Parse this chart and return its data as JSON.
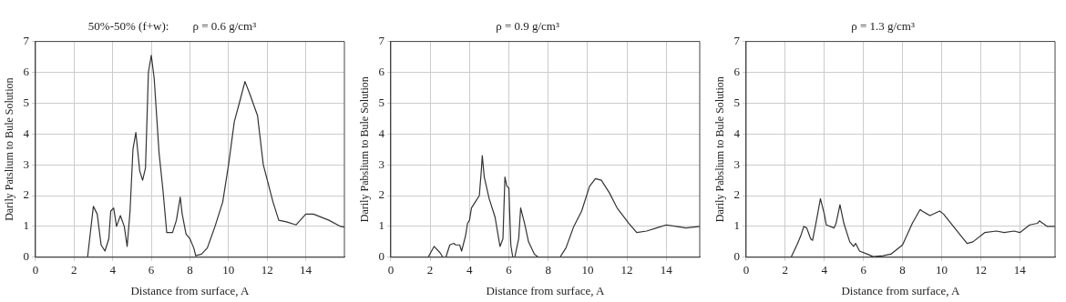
{
  "chart_data": [
    {
      "type": "line",
      "title": "50%-50% (f+w):        ρ = 0.6 g/cm³",
      "xlabel": "Distance from surface, A",
      "ylabel": "Darily Patslium to Bule Solution",
      "xlim": [
        0,
        16
      ],
      "xticks": [
        0,
        2,
        4,
        6,
        8,
        10,
        12,
        14
      ],
      "ylim": [
        0,
        7
      ],
      "yticks": [
        0,
        1,
        2,
        3,
        4,
        5,
        6,
        7
      ],
      "grid": true,
      "legend": false,
      "marker": "none",
      "line_style": "solid",
      "series": [
        {
          "color": "#333333",
          "x": [
            0,
            2.7,
            3.0,
            3.2,
            3.4,
            3.6,
            3.8,
            3.9,
            4.05,
            4.2,
            4.4,
            4.6,
            4.75,
            4.9,
            5.05,
            5.2,
            5.4,
            5.55,
            5.7,
            5.85,
            6.0,
            6.15,
            6.4,
            6.6,
            6.8,
            7.1,
            7.3,
            7.5,
            7.6,
            7.8,
            8.0,
            8.2,
            8.3,
            8.6,
            8.9,
            9.3,
            9.7,
            10.0,
            10.3,
            10.6,
            10.85,
            11.1,
            11.5,
            11.8,
            12.3,
            12.6,
            13.0,
            13.5,
            14.0,
            14.4,
            15.2,
            15.8,
            16
          ],
          "values": [
            0,
            0,
            1.65,
            1.4,
            0.4,
            0.2,
            0.6,
            1.5,
            1.6,
            1.0,
            1.35,
            1.0,
            0.35,
            1.5,
            3.5,
            4.05,
            2.8,
            2.5,
            2.9,
            6.0,
            6.55,
            5.8,
            3.4,
            2.2,
            0.8,
            0.8,
            1.2,
            1.95,
            1.4,
            0.75,
            0.6,
            0.3,
            0.05,
            0.1,
            0.3,
            1.0,
            1.8,
            3.0,
            4.4,
            5.1,
            5.7,
            5.3,
            4.6,
            3.0,
            1.8,
            1.2,
            1.15,
            1.05,
            1.4,
            1.4,
            1.2,
            1.0,
            0.98
          ]
        }
      ]
    },
    {
      "type": "line",
      "title": "ρ = 0.9 g/cm³",
      "xlabel": "Distance from surface, A",
      "ylabel": "Darily Pabslium to Bule Solution",
      "xlim": [
        0,
        15.7
      ],
      "xticks": [
        0,
        2,
        4,
        6,
        8,
        10,
        12,
        14
      ],
      "ylim": [
        0,
        7
      ],
      "yticks": [
        0,
        1,
        2,
        3,
        4,
        5,
        6,
        7
      ],
      "grid": true,
      "legend": false,
      "marker": "none",
      "line_style": "solid",
      "series": [
        {
          "color": "#333333",
          "x": [
            0,
            1.9,
            2.2,
            2.5,
            2.65,
            2.8,
            3.0,
            3.2,
            3.3,
            3.5,
            3.6,
            3.8,
            3.9,
            4.0,
            4.1,
            4.3,
            4.5,
            4.6,
            4.65,
            4.75,
            5.0,
            5.3,
            5.55,
            5.7,
            5.8,
            5.9,
            6.0,
            6.1,
            6.2,
            6.3,
            6.5,
            6.6,
            6.8,
            7.0,
            7.3,
            7.5,
            8.6,
            8.9,
            9.3,
            9.7,
            10.1,
            10.4,
            10.7,
            11.1,
            11.5,
            12.1,
            12.5,
            13.0,
            13.5,
            14.0,
            14.5,
            15.0,
            15.7
          ],
          "values": [
            0,
            0,
            0.35,
            0.15,
            0,
            0,
            0.4,
            0.45,
            0.4,
            0.4,
            0.2,
            0.7,
            1.1,
            1.2,
            1.6,
            1.8,
            2.0,
            2.8,
            3.3,
            2.6,
            1.9,
            1.3,
            0.35,
            0.6,
            2.6,
            2.3,
            2.25,
            0.4,
            0,
            0,
            0.6,
            1.6,
            1.1,
            0.5,
            0.1,
            0,
            0,
            0.3,
            1.0,
            1.5,
            2.3,
            2.55,
            2.5,
            2.1,
            1.6,
            1.1,
            0.8,
            0.85,
            0.95,
            1.05,
            1.0,
            0.95,
            1.0
          ]
        }
      ]
    },
    {
      "type": "line",
      "title": "ρ = 1.3 g/cm³",
      "xlabel": "Distance from surface, A",
      "ylabel": "Darily Pabslium to Bule Solution",
      "xlim": [
        0,
        15.8
      ],
      "xticks": [
        0,
        2,
        4,
        6,
        8,
        10,
        12,
        14
      ],
      "ylim": [
        0,
        7
      ],
      "yticks": [
        0,
        1,
        2,
        3,
        4,
        5,
        6,
        7
      ],
      "grid": true,
      "legend": false,
      "marker": "none",
      "line_style": "solid",
      "series": [
        {
          "color": "#333333",
          "x": [
            0,
            2.3,
            2.6,
            2.8,
            2.95,
            3.1,
            3.3,
            3.4,
            3.6,
            3.8,
            4.0,
            4.1,
            4.5,
            4.6,
            4.8,
            5.0,
            5.3,
            5.5,
            5.6,
            5.8,
            6.2,
            6.5,
            7.0,
            7.4,
            8.0,
            8.5,
            8.9,
            9.0,
            9.4,
            9.9,
            10.1,
            10.6,
            11.3,
            11.6,
            12.2,
            12.8,
            13.2,
            13.7,
            14.0,
            14.5,
            14.9,
            15.0,
            15.4,
            15.8
          ],
          "values": [
            0,
            0,
            0.4,
            0.7,
            1.0,
            0.95,
            0.6,
            0.55,
            1.2,
            1.9,
            1.4,
            1.05,
            0.95,
            1.1,
            1.7,
            1.1,
            0.5,
            0.35,
            0.45,
            0.2,
            0.1,
            0.02,
            0.05,
            0.1,
            0.4,
            1.1,
            1.55,
            1.5,
            1.35,
            1.5,
            1.4,
            1.0,
            0.45,
            0.5,
            0.8,
            0.85,
            0.8,
            0.85,
            0.8,
            1.05,
            1.1,
            1.18,
            1.0,
            1.0
          ]
        }
      ]
    }
  ]
}
